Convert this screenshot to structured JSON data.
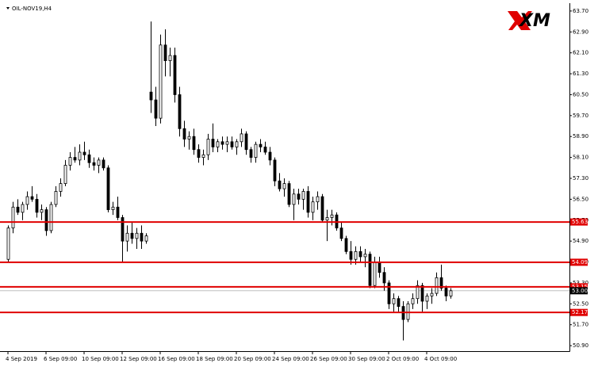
{
  "chart_data": {
    "type": "candlestick",
    "title": "OIL-NOV19,H4",
    "logo": "XM",
    "ohlc": [
      [
        54.2,
        55.5,
        54.1,
        55.4
      ],
      [
        55.4,
        56.4,
        55.2,
        56.2
      ],
      [
        56.2,
        56.5,
        55.9,
        56.0
      ],
      [
        56.0,
        56.4,
        55.7,
        56.3
      ],
      [
        56.3,
        56.8,
        56.1,
        56.6
      ],
      [
        56.6,
        57.0,
        56.4,
        56.5
      ],
      [
        56.5,
        56.7,
        55.8,
        56.0
      ],
      [
        56.0,
        56.3,
        55.7,
        56.1
      ],
      [
        56.1,
        56.2,
        55.1,
        55.3
      ],
      [
        55.3,
        56.4,
        55.2,
        56.3
      ],
      [
        56.3,
        57.0,
        56.2,
        56.8
      ],
      [
        56.8,
        57.3,
        56.6,
        57.1
      ],
      [
        57.1,
        58.0,
        57.0,
        57.8
      ],
      [
        57.8,
        58.3,
        57.6,
        58.1
      ],
      [
        58.1,
        58.5,
        57.9,
        58.0
      ],
      [
        58.0,
        58.6,
        57.8,
        58.3
      ],
      [
        58.3,
        58.7,
        58.0,
        58.2
      ],
      [
        58.2,
        58.4,
        57.7,
        57.9
      ],
      [
        57.9,
        58.1,
        57.6,
        57.8
      ],
      [
        57.8,
        58.1,
        57.5,
        58.0
      ],
      [
        58.0,
        58.1,
        57.6,
        57.7
      ],
      [
        57.7,
        57.8,
        56.0,
        56.1
      ],
      [
        56.1,
        56.4,
        55.9,
        56.2
      ],
      [
        56.2,
        56.6,
        55.7,
        55.8
      ],
      [
        55.8,
        55.9,
        54.1,
        54.9
      ],
      [
        54.9,
        55.5,
        54.5,
        55.2
      ],
      [
        55.2,
        55.6,
        54.8,
        55.0
      ],
      [
        55.0,
        55.4,
        54.6,
        55.2
      ],
      [
        55.2,
        55.5,
        54.6,
        54.9
      ],
      [
        54.9,
        55.2,
        54.8,
        55.1
      ],
      [
        60.6,
        63.3,
        59.8,
        60.3
      ],
      [
        60.3,
        60.8,
        59.3,
        59.6
      ],
      [
        59.6,
        62.8,
        59.4,
        62.4
      ],
      [
        62.4,
        63.0,
        61.2,
        61.8
      ],
      [
        61.8,
        62.3,
        61.2,
        62.0
      ],
      [
        62.0,
        62.3,
        60.2,
        60.5
      ],
      [
        60.5,
        60.8,
        58.9,
        59.2
      ],
      [
        59.2,
        59.5,
        58.5,
        58.8
      ],
      [
        58.8,
        59.1,
        58.4,
        58.9
      ],
      [
        58.9,
        59.2,
        58.2,
        58.4
      ],
      [
        58.4,
        58.6,
        57.9,
        58.1
      ],
      [
        58.1,
        58.4,
        57.8,
        58.2
      ],
      [
        58.2,
        59.0,
        58.0,
        58.8
      ],
      [
        58.8,
        59.4,
        58.3,
        58.5
      ],
      [
        58.5,
        58.8,
        58.3,
        58.7
      ],
      [
        58.7,
        58.9,
        58.4,
        58.6
      ],
      [
        58.6,
        58.9,
        58.3,
        58.7
      ],
      [
        58.7,
        58.9,
        58.4,
        58.5
      ],
      [
        58.5,
        58.8,
        58.2,
        58.7
      ],
      [
        58.7,
        59.2,
        58.5,
        59.0
      ],
      [
        59.0,
        59.1,
        58.2,
        58.4
      ],
      [
        58.4,
        58.5,
        57.9,
        58.1
      ],
      [
        58.1,
        58.7,
        57.9,
        58.6
      ],
      [
        58.6,
        58.8,
        58.3,
        58.5
      ],
      [
        58.5,
        58.7,
        58.2,
        58.3
      ],
      [
        58.3,
        58.5,
        57.8,
        58.0
      ],
      [
        58.0,
        58.1,
        57.0,
        57.2
      ],
      [
        57.2,
        57.5,
        56.8,
        56.9
      ],
      [
        56.9,
        57.3,
        56.6,
        57.1
      ],
      [
        57.1,
        57.2,
        56.2,
        56.3
      ],
      [
        56.3,
        56.9,
        55.7,
        56.7
      ],
      [
        56.7,
        56.9,
        56.3,
        56.5
      ],
      [
        56.5,
        56.9,
        56.1,
        56.8
      ],
      [
        56.8,
        57.0,
        55.8,
        56.0
      ],
      [
        56.0,
        56.6,
        55.7,
        56.4
      ],
      [
        56.4,
        56.8,
        56.1,
        56.6
      ],
      [
        56.6,
        56.7,
        55.6,
        55.7
      ],
      [
        55.7,
        56.1,
        54.9,
        55.8
      ],
      [
        55.8,
        56.1,
        55.5,
        55.9
      ],
      [
        55.9,
        56.0,
        55.3,
        55.4
      ],
      [
        55.4,
        55.6,
        54.9,
        55.0
      ],
      [
        55.0,
        55.1,
        54.4,
        54.5
      ],
      [
        54.5,
        54.9,
        54.0,
        54.2
      ],
      [
        54.2,
        54.7,
        54.0,
        54.5
      ],
      [
        54.5,
        54.7,
        54.1,
        54.3
      ],
      [
        54.3,
        54.6,
        53.9,
        54.4
      ],
      [
        54.4,
        54.5,
        53.1,
        53.2
      ],
      [
        53.2,
        54.3,
        53.1,
        54.1
      ],
      [
        54.1,
        54.3,
        53.5,
        53.7
      ],
      [
        53.7,
        53.9,
        53.0,
        53.3
      ],
      [
        53.3,
        53.4,
        52.3,
        52.5
      ],
      [
        52.5,
        52.9,
        52.2,
        52.7
      ],
      [
        52.7,
        52.8,
        52.2,
        52.4
      ],
      [
        52.4,
        52.6,
        51.1,
        51.9
      ],
      [
        51.9,
        52.6,
        51.8,
        52.5
      ],
      [
        52.5,
        52.9,
        52.3,
        52.7
      ],
      [
        52.7,
        53.4,
        52.5,
        53.2
      ],
      [
        53.2,
        53.3,
        52.2,
        52.6
      ],
      [
        52.6,
        52.9,
        52.3,
        52.8
      ],
      [
        52.8,
        53.1,
        52.5,
        52.9
      ],
      [
        52.9,
        53.7,
        52.8,
        53.5
      ],
      [
        53.5,
        54.0,
        53.0,
        53.1
      ],
      [
        53.1,
        53.2,
        52.6,
        52.8
      ],
      [
        52.8,
        53.1,
        52.7,
        53.0
      ]
    ],
    "xlim": [
      -1.67,
      118
    ],
    "xticks": [
      {
        "value": 0,
        "label": "4 Sep 2019"
      },
      {
        "value": 8,
        "label": "6 Sep 09:00"
      },
      {
        "value": 16,
        "label": "10 Sep 09:00"
      },
      {
        "value": 24,
        "label": "12 Sep 09:00"
      },
      {
        "value": 32,
        "label": "16 Sep 09:00"
      },
      {
        "value": 40,
        "label": "18 Sep 09:00"
      },
      {
        "value": 48,
        "label": "20 Sep 09:00"
      },
      {
        "value": 56,
        "label": "24 Sep 09:00"
      },
      {
        "value": 64,
        "label": "26 Sep 09:00"
      },
      {
        "value": 72,
        "label": "30 Sep 09:00"
      },
      {
        "value": 80,
        "label": "2 Oct 09:00"
      },
      {
        "value": 88,
        "label": "4 Oct 09:00"
      }
    ],
    "ylim": [
      50.69,
      64.0
    ],
    "yticks": [
      {
        "value": 63.7,
        "label": "63.70"
      },
      {
        "value": 62.9,
        "label": "62.90"
      },
      {
        "value": 62.1,
        "label": "62.10"
      },
      {
        "value": 61.3,
        "label": "61.30"
      },
      {
        "value": 60.5,
        "label": "60.50"
      },
      {
        "value": 59.7,
        "label": "59.70"
      },
      {
        "value": 58.9,
        "label": "58.90"
      },
      {
        "value": 58.1,
        "label": "58.10"
      },
      {
        "value": 57.3,
        "label": "57.30"
      },
      {
        "value": 56.5,
        "label": "56.50"
      },
      {
        "value": 55.7,
        "label": "55.70"
      },
      {
        "value": 54.9,
        "label": "54.90"
      },
      {
        "value": 54.1,
        "label": "54.10"
      },
      {
        "value": 53.3,
        "label": "53.30"
      },
      {
        "value": 52.5,
        "label": "52.50"
      },
      {
        "value": 51.7,
        "label": "51.70"
      },
      {
        "value": 50.9,
        "label": "50.90"
      }
    ],
    "levels": [
      55.63,
      54.09,
      53.15,
      52.17
    ],
    "level_color": "#e00000",
    "current_price": {
      "value": 53,
      "label": "53.00"
    },
    "up_color": "#ffffff",
    "down_color": "#000000"
  }
}
